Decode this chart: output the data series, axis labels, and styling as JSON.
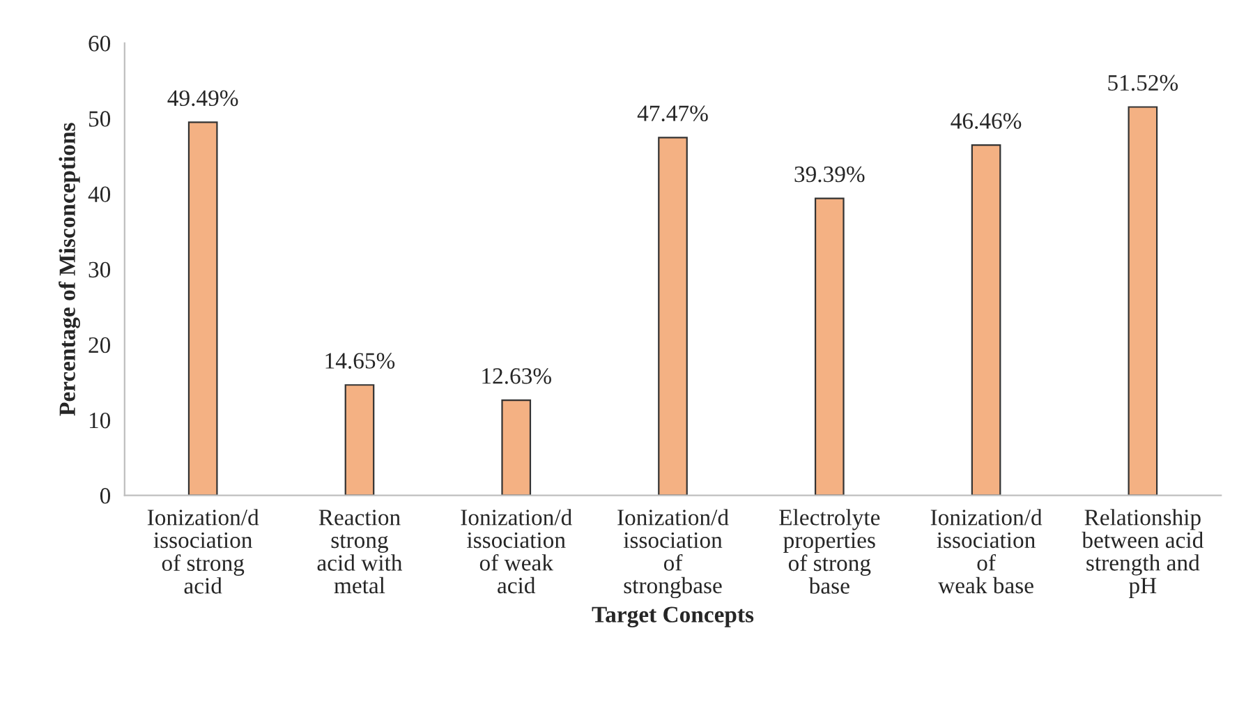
{
  "chart_data": {
    "type": "bar",
    "xlabel": "Target Concepts",
    "ylabel": "Percentage of Misconceptions",
    "categories": [
      "Ionization/d\nissociation\nof strong\nacid",
      "Reaction\nstrong\nacid with\nmetal",
      "Ionization/d\nissociation\nof weak\nacid",
      "Ionization/d\nissociation\nof\nstrongbase",
      "Electrolyte\nproperties\nof strong\nbase",
      "Ionization/d\nissociation\nof\nweak base",
      "Relationship\nbetween acid\nstrength and\npH"
    ],
    "values": [
      49.49,
      14.65,
      12.63,
      47.47,
      39.39,
      46.46,
      51.52
    ],
    "value_labels": [
      "49.49%",
      "14.65%",
      "12.63%",
      "47.47%",
      "39.39%",
      "46.46%",
      "51.52%"
    ],
    "color": "#f4b183",
    "ylim": [
      0,
      60
    ],
    "yticks": [
      0,
      10,
      20,
      30,
      40,
      50,
      60
    ],
    "grid": false,
    "legend": false
  }
}
